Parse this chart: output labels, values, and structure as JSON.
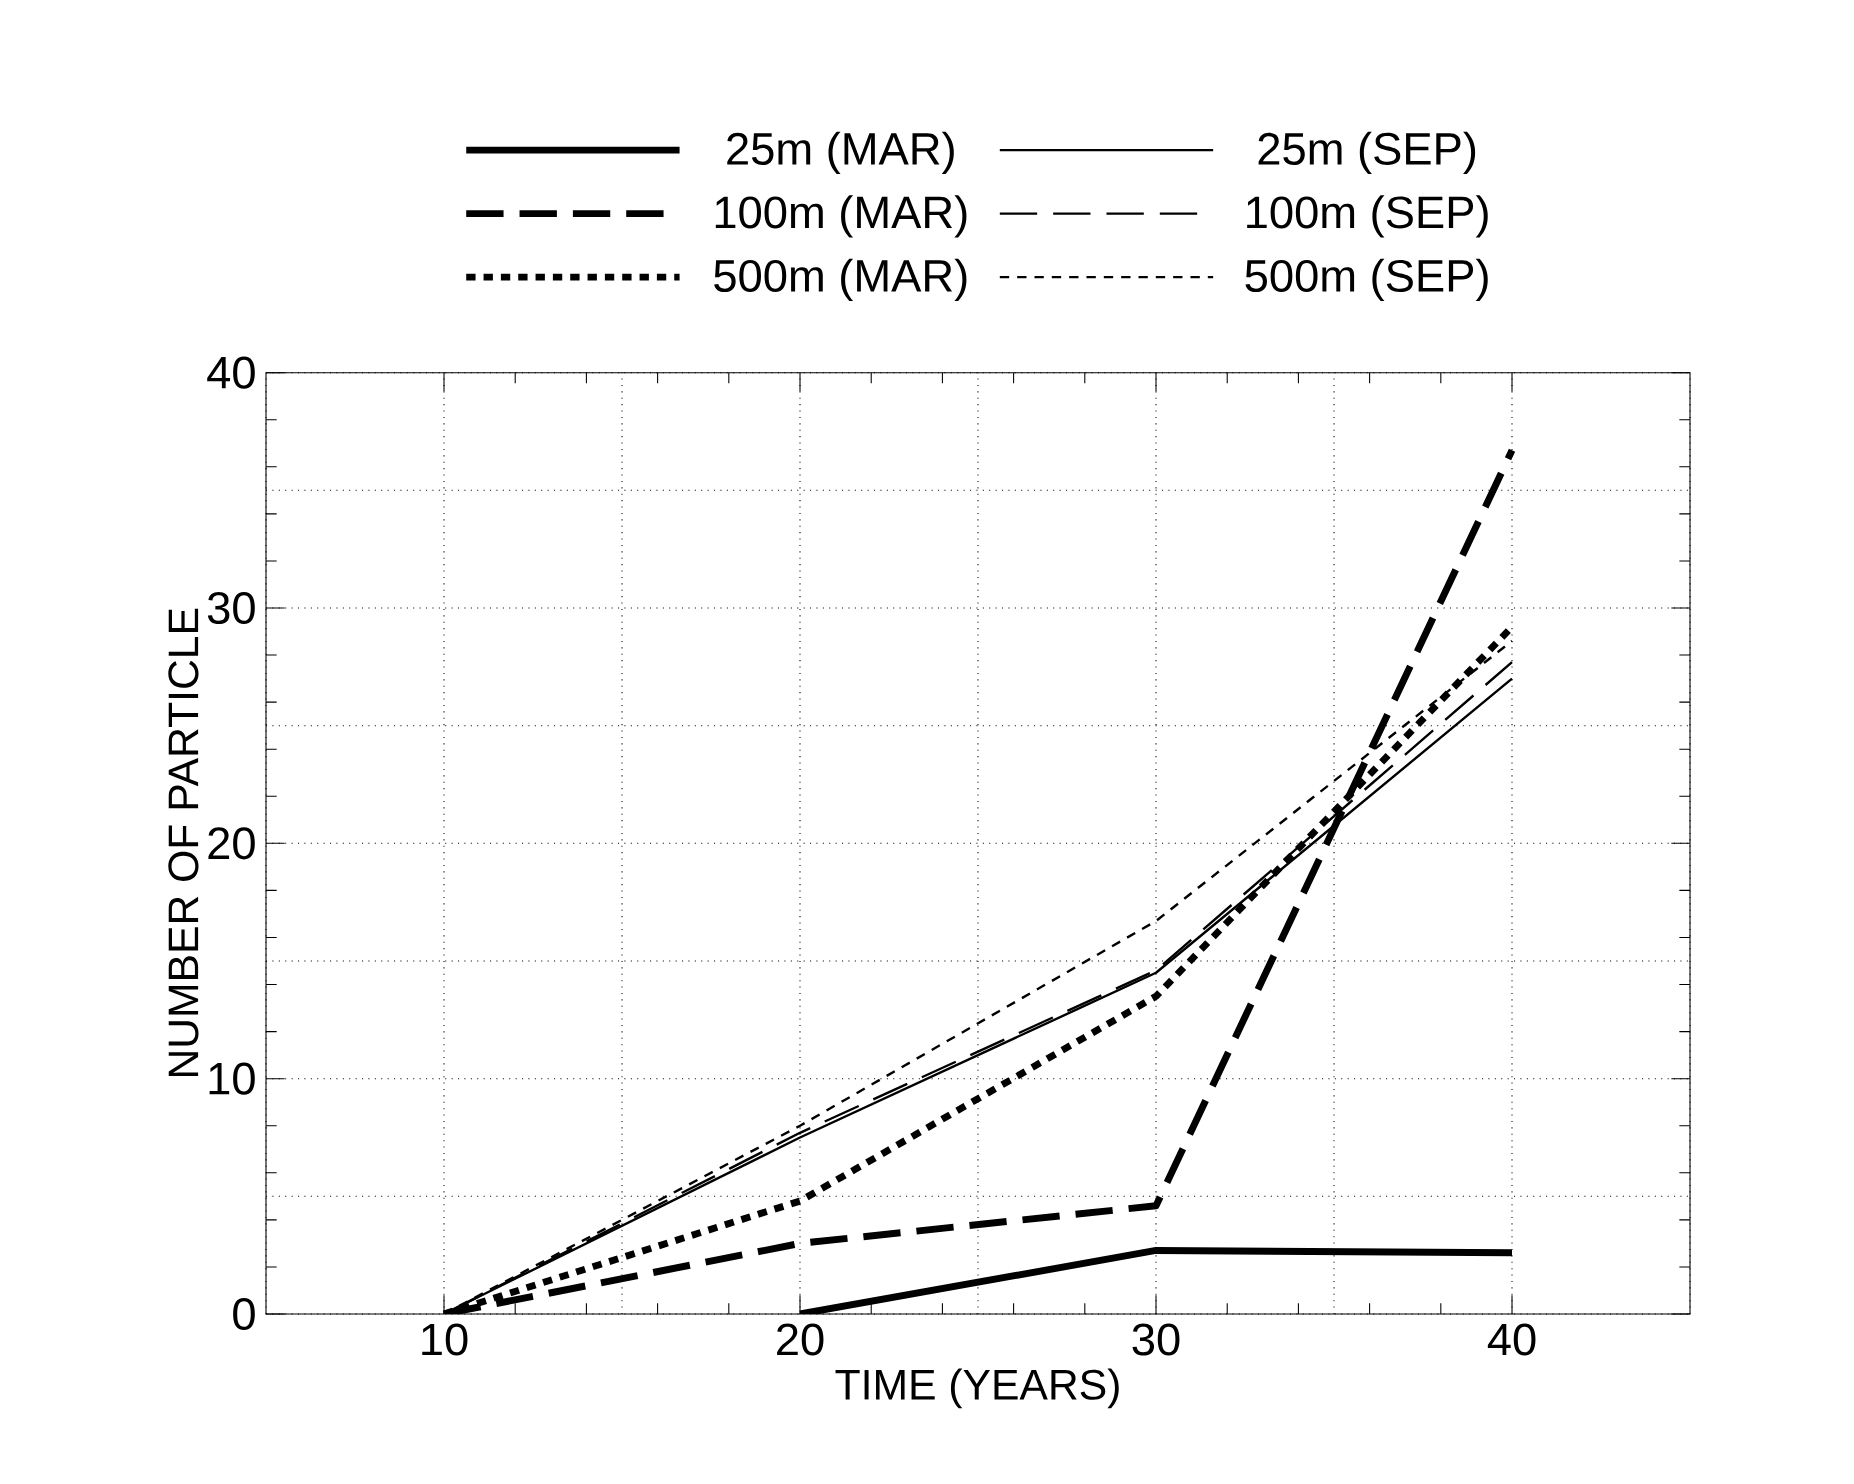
{
  "chart_data": {
    "type": "line",
    "xlabel": "TIME    (YEARS)",
    "ylabel": "NUMBER OF PARTICLE",
    "x": [
      10,
      20,
      30,
      40
    ],
    "xlim": [
      5,
      45
    ],
    "ylim": [
      0,
      40
    ],
    "xticks": [
      10,
      20,
      30,
      40
    ],
    "yticks": [
      0,
      10,
      20,
      30,
      40
    ],
    "grid": true,
    "legend": "top",
    "marker": "none",
    "series": [
      {
        "name": "25m  (MAR)",
        "color": "#000000",
        "line_style": "solid",
        "x": [
          20,
          30,
          40
        ],
        "values": [
          0,
          2.7,
          2.6
        ]
      },
      {
        "name": "25m    (SEP)",
        "color": "#000000",
        "line_style": "solid",
        "values": [
          0,
          7.5,
          14.5,
          27
        ]
      },
      {
        "name": "100m  (MAR)",
        "color": "#000000",
        "line_style": "dashed",
        "values": [
          0,
          3.0,
          4.6,
          36.7
        ]
      },
      {
        "name": "100m    (SEP)",
        "color": "#000000",
        "line_style": "dashed",
        "values": [
          0,
          7.7,
          14.6,
          27.7
        ]
      },
      {
        "name": "500m  (MAR)",
        "color": "#000000",
        "line_style": "dotted",
        "values": [
          0,
          4.8,
          13.5,
          29.2
        ]
      },
      {
        "name": "500m    (SEP)",
        "color": "#000000",
        "line_style": "dotted",
        "values": [
          0,
          8,
          16.7,
          28.6
        ]
      }
    ]
  }
}
